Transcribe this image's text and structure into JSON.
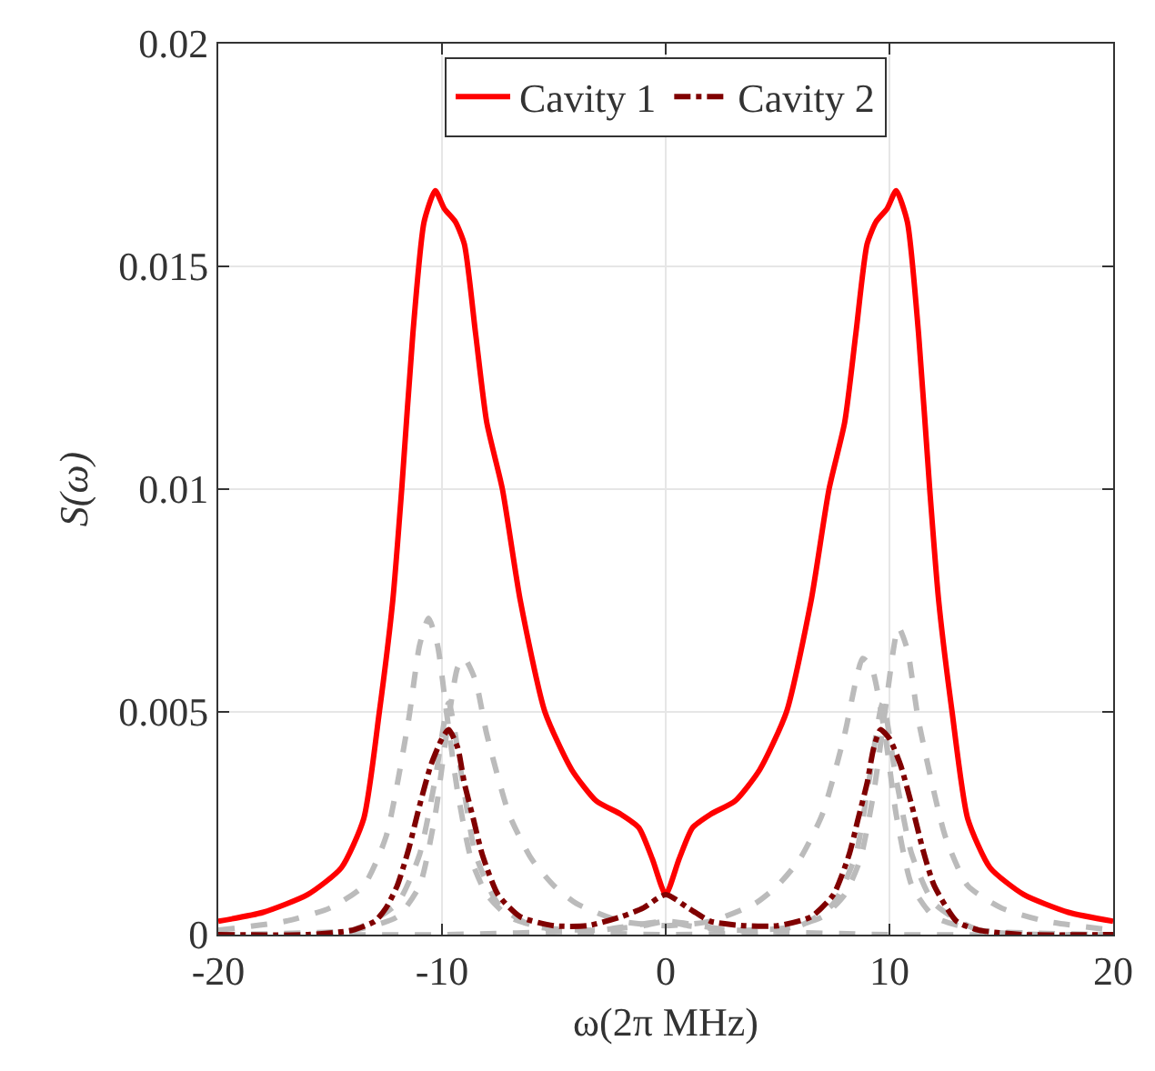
{
  "chart_data": {
    "type": "line",
    "xlabel": "ω(2π MHz)",
    "ylabel": "S(ω)",
    "xlim": [
      -20,
      20
    ],
    "ylim": [
      0,
      0.02
    ],
    "xticks": [
      -20,
      -10,
      0,
      10,
      20
    ],
    "yticks": [
      0,
      0.005,
      0.01,
      0.015,
      0.02
    ],
    "grid": true,
    "legend": "top",
    "marker": "none",
    "series": [
      {
        "color": "#bbbbbb",
        "line_style": "dashed",
        "x": [
          -20,
          -17,
          -15,
          -13.5,
          -12.5,
          -11.5,
          -11,
          -10.6,
          -10.2,
          -9.8,
          -9.3,
          -8.7,
          -8,
          -7,
          -5,
          0,
          5,
          7,
          8,
          8.7,
          9.3,
          9.8,
          10.4,
          10.8,
          11.3,
          12.5,
          13.5,
          15,
          17,
          20
        ],
        "values": [
          0.0001,
          0.0003,
          0.0006,
          0.0011,
          0.0022,
          0.0048,
          0.0065,
          0.0071,
          0.0065,
          0.005,
          0.0032,
          0.0017,
          0.0009,
          0.0004,
          0.0001,
          0,
          0.0001,
          0.0004,
          0.0009,
          0.0017,
          0.0032,
          0.005,
          0.0069,
          0.0064,
          0.0048,
          0.0022,
          0.0011,
          0.0006,
          0.0003,
          0.0001
        ]
      },
      {
        "color": "#bbbbbb",
        "line_style": "dashed",
        "x": [
          -20,
          -14,
          -12,
          -11,
          -10.3,
          -9.8,
          -9.3,
          -9,
          -8.5,
          -8,
          -7,
          -6,
          -5,
          -4,
          -2,
          0,
          2,
          4,
          5,
          6,
          7,
          8,
          8.5,
          8.8,
          9.2,
          9.8,
          10.3,
          11,
          12,
          14,
          20
        ],
        "values": [
          0,
          0.0001,
          0.0004,
          0.0011,
          0.0027,
          0.0045,
          0.006,
          0.0062,
          0.0057,
          0.0045,
          0.0027,
          0.0017,
          0.0011,
          0.0007,
          0.0003,
          0.0002,
          0.0003,
          0.0007,
          0.0011,
          0.0017,
          0.0027,
          0.0045,
          0.0057,
          0.0062,
          0.006,
          0.0045,
          0.0027,
          0.0011,
          0.0004,
          0.0001,
          0
        ]
      },
      {
        "color": "#bbbbbb",
        "line_style": "dashed",
        "x": [
          -20,
          -14,
          -12,
          -11,
          -10.3,
          -9.7,
          -9.1,
          -8.5,
          -7.5,
          -6,
          -3,
          0,
          3,
          6,
          7.5,
          8.5,
          9.1,
          9.7,
          10.3,
          11,
          12,
          14,
          20
        ],
        "values": [
          0,
          0.0001,
          0.0007,
          0.0018,
          0.0035,
          0.0052,
          0.0035,
          0.0018,
          0.0007,
          0.0002,
          0.0001,
          0.0003,
          0.0001,
          0.0002,
          0.0007,
          0.0018,
          0.0035,
          0.0052,
          0.0035,
          0.0018,
          0.0007,
          0.0001,
          0
        ]
      },
      {
        "color": "#bbbbbb",
        "line_style": "dashed",
        "x": [
          -20,
          -10,
          -3,
          -1,
          0,
          1,
          3,
          10,
          20
        ],
        "values": [
          0,
          0,
          0.0001,
          0.0002,
          0.0003,
          0.0002,
          0.0001,
          0,
          0
        ]
      },
      {
        "name": "Cavity 1",
        "color": "#ff0000",
        "line_style": "solid",
        "x": [
          -20,
          -18,
          -16,
          -14.5,
          -13.5,
          -12.8,
          -12.2,
          -11.8,
          -11.3,
          -10.8,
          -10.3,
          -9.9,
          -9.4,
          -9,
          -8.5,
          -8,
          -7.3,
          -6.5,
          -5.4,
          -4.2,
          -3.1,
          -2,
          -1.2,
          -0.6,
          0,
          0.6,
          1.2,
          2,
          3.1,
          4.2,
          5.4,
          6.5,
          7.3,
          8,
          8.5,
          9,
          9.4,
          9.9,
          10.3,
          10.8,
          11.3,
          11.8,
          12.2,
          12.8,
          13.5,
          14.5,
          16,
          18,
          20
        ],
        "values": [
          0.0003,
          0.0005,
          0.0009,
          0.0015,
          0.0026,
          0.005,
          0.0075,
          0.01,
          0.0135,
          0.016,
          0.0167,
          0.0163,
          0.016,
          0.0155,
          0.0135,
          0.0115,
          0.01,
          0.0075,
          0.005,
          0.0037,
          0.003,
          0.0027,
          0.0024,
          0.0017,
          0.0009,
          0.0017,
          0.0024,
          0.0027,
          0.003,
          0.0037,
          0.005,
          0.0075,
          0.01,
          0.0115,
          0.0135,
          0.0155,
          0.016,
          0.0163,
          0.0167,
          0.016,
          0.0135,
          0.01,
          0.0075,
          0.005,
          0.0026,
          0.0015,
          0.0009,
          0.0005,
          0.0003
        ]
      },
      {
        "name": "Cavity 2",
        "color": "#800000",
        "line_style": "dashdot",
        "x": [
          -20,
          -16,
          -14,
          -13,
          -12.5,
          -12,
          -11.5,
          -11,
          -10.5,
          -10,
          -9.7,
          -9.3,
          -9,
          -8.6,
          -8.2,
          -7.5,
          -6.5,
          -5,
          -3.5,
          -2,
          -1,
          0,
          1,
          2,
          3.5,
          5,
          6.5,
          7.5,
          8.2,
          8.6,
          9,
          9.3,
          9.6,
          10,
          10.5,
          11,
          11.5,
          12,
          13,
          14,
          16,
          20
        ],
        "values": [
          0,
          0,
          0.0001,
          0.0003,
          0.0006,
          0.0011,
          0.0019,
          0.0029,
          0.0038,
          0.0044,
          0.0046,
          0.0042,
          0.0034,
          0.0026,
          0.0018,
          0.0009,
          0.0004,
          0.0002,
          0.0002,
          0.0004,
          0.0006,
          0.0009,
          0.0006,
          0.0003,
          0.0002,
          0.0002,
          0.0004,
          0.0009,
          0.0018,
          0.0026,
          0.0034,
          0.0042,
          0.0046,
          0.0044,
          0.0038,
          0.0029,
          0.0019,
          0.0011,
          0.0003,
          0.0001,
          0,
          0
        ]
      }
    ]
  }
}
